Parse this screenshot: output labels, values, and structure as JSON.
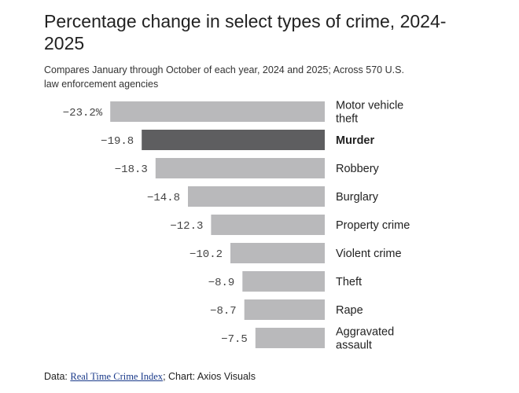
{
  "title": "Percentage change in select types of crime, 2024-2025",
  "subtitle": "Compares January through October of each year, 2024 and 2025; Across 570 U.S. law enforcement agencies",
  "footer": {
    "prefix": "Data: ",
    "source_link": "Real Time Crime Index",
    "suffix": "; Chart: Axios Visuals"
  },
  "colors": {
    "bar": "#b9b9bb",
    "highlight": "#5e5e60"
  },
  "chart_data": {
    "type": "bar",
    "orientation": "horizontal",
    "categories": [
      "Motor vehicle theft",
      "Murder",
      "Robbery",
      "Burglary",
      "Property crime",
      "Violent crime",
      "Theft",
      "Rape",
      "Aggravated assault"
    ],
    "values": [
      -23.2,
      -19.8,
      -18.3,
      -14.8,
      -12.3,
      -10.2,
      -8.9,
      -8.7,
      -7.5
    ],
    "value_labels": [
      "−23.2%",
      "−19.8",
      "−18.3",
      "−14.8",
      "−12.3",
      "−10.2",
      "−8.9",
      "−8.7",
      "−7.5"
    ],
    "highlight": "Murder",
    "xlim": [
      -25,
      0
    ],
    "grid": false,
    "legend": "none"
  }
}
